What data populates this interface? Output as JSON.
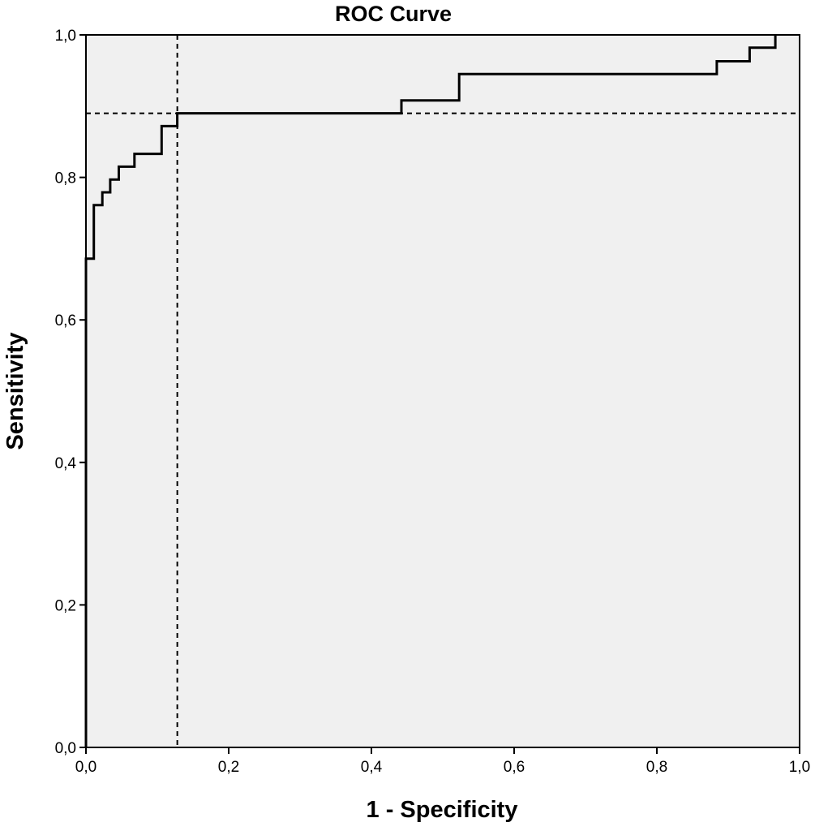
{
  "chart_data": {
    "type": "line",
    "title": "ROC Curve",
    "xlabel": "1 - Specificity",
    "ylabel": "Sensitivity",
    "xlim": [
      0,
      1
    ],
    "ylim": [
      0,
      1
    ],
    "x_ticks": [
      "0,0",
      "0,2",
      "0,4",
      "0,6",
      "0,8",
      "1,0"
    ],
    "y_ticks": [
      "0,0",
      "0,2",
      "0,4",
      "0,6",
      "0,8",
      "1,0"
    ],
    "x_tick_values": [
      0,
      0.2,
      0.4,
      0.6,
      0.8,
      1.0
    ],
    "y_tick_values": [
      0,
      0.2,
      0.4,
      0.6,
      0.8,
      1.0
    ],
    "grid": false,
    "background_color": "#f0f0f0",
    "line_color": "#000000",
    "series": [
      {
        "x": [
          0.0,
          0.0,
          0.011,
          0.011,
          0.023,
          0.023,
          0.034,
          0.034,
          0.046,
          0.046,
          0.068,
          0.068,
          0.106,
          0.106,
          0.128,
          0.128,
          0.442,
          0.442,
          0.523,
          0.523,
          0.884,
          0.884,
          0.93,
          0.93,
          0.966,
          0.966
        ],
        "y": [
          0.0,
          0.686,
          0.686,
          0.761,
          0.761,
          0.779,
          0.779,
          0.797,
          0.797,
          0.815,
          0.815,
          0.833,
          0.833,
          0.872,
          0.872,
          0.89,
          0.89,
          0.908,
          0.908,
          0.945,
          0.945,
          0.963,
          0.963,
          0.982,
          0.982,
          1.0
        ]
      }
    ],
    "reference_lines": {
      "vertical_x": 0.128,
      "horizontal_y": 0.89,
      "style": "dashed"
    }
  }
}
